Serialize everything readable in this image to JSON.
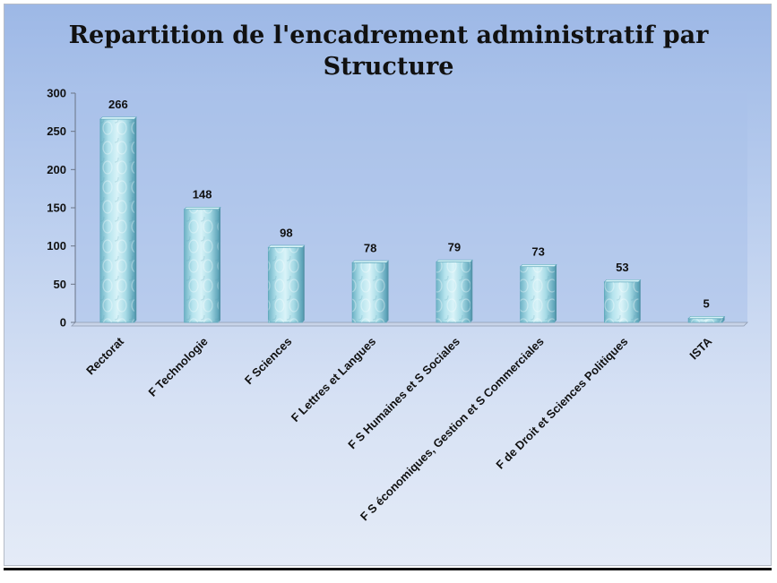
{
  "chart_data": {
    "type": "bar",
    "title": "Repartition de l'encadrement administratif par Structure",
    "xlabel": "",
    "ylabel": "",
    "ylim": [
      0,
      300
    ],
    "yticks": [
      0,
      50,
      100,
      150,
      200,
      250,
      300
    ],
    "grid": false,
    "legend": "none",
    "categories": [
      "Rectorat",
      "F Technologie",
      "F Sciences",
      "F Lettres et Langues",
      "F S Humaines et S Sociales",
      "F S économiques, Gestion et S Commerciales",
      "F de Droit et Sciences Politiques",
      "ISTA"
    ],
    "values": [
      266,
      148,
      98,
      78,
      79,
      73,
      53,
      5
    ],
    "colors": {
      "bar_fill": "#a9dde8",
      "bar_edge": "#5fa8bc",
      "plot_background": "#a9c1ea"
    }
  }
}
